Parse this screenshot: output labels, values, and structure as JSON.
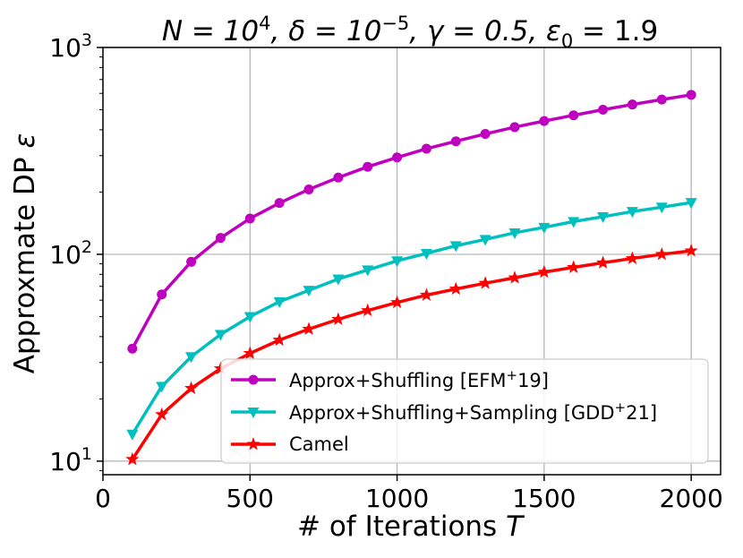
{
  "chart_data": {
    "type": "line",
    "title": {
      "eq1": "N = 10",
      "sup1": "4",
      "eq2": ", δ = 10",
      "sup2": "−5",
      "eq3": ", γ = 0.5, ε",
      "sub3": "0",
      "eq4": " = 1.9"
    },
    "xlabel": {
      "text": "# of Iterations ",
      "italic": "T"
    },
    "ylabel": {
      "text": "Approxmate DP ",
      "italic": "ε"
    },
    "xlim": [
      0,
      2100
    ],
    "ylim": [
      8.6,
      1000
    ],
    "yscale": "log",
    "grid": true,
    "x_ticks": [
      {
        "value": 0,
        "label": "0"
      },
      {
        "value": 500,
        "label": "500"
      },
      {
        "value": 1000,
        "label": "1000"
      },
      {
        "value": 1500,
        "label": "1500"
      },
      {
        "value": 2000,
        "label": "2000"
      }
    ],
    "y_ticks": [
      {
        "value": 10,
        "base": "10",
        "exp": "1"
      },
      {
        "value": 100,
        "base": "10",
        "exp": "2"
      },
      {
        "value": 1000,
        "base": "10",
        "exp": "3"
      }
    ],
    "x": [
      100,
      200,
      300,
      400,
      500,
      600,
      700,
      800,
      900,
      1000,
      1100,
      1200,
      1300,
      1400,
      1500,
      1600,
      1700,
      1800,
      1900,
      2000
    ],
    "series": [
      {
        "name": "Approx+Shuffling [EFM⁺19]",
        "legend": {
          "main": "Approx+Shuffling [EFM",
          "sup": "+",
          "tail": "19]"
        },
        "color": "#bf00bf",
        "marker": "circle",
        "values": [
          35,
          64,
          92,
          120,
          149,
          177,
          206,
          235,
          265,
          294,
          324,
          352,
          382,
          412,
          441,
          470,
          500,
          530,
          560,
          590
        ]
      },
      {
        "name": "Approx+Shuffling+Sampling [GDD⁺21]",
        "legend": {
          "main": "Approx+Shuffling+Sampling [GDD",
          "sup": "+",
          "tail": "21]"
        },
        "color": "#00bfbf",
        "marker": "triangle-down",
        "values": [
          13.5,
          23,
          32,
          41,
          50,
          59,
          67,
          76,
          84,
          93,
          101,
          110,
          118,
          127,
          135,
          144,
          152,
          161,
          169,
          178
        ]
      },
      {
        "name": "Camel",
        "legend": {
          "main": "Camel",
          "sup": "",
          "tail": ""
        },
        "color": "#ff0000",
        "marker": "star",
        "values": [
          10.2,
          16.8,
          22.5,
          28,
          33.2,
          38.5,
          43.5,
          48.5,
          53.5,
          58.5,
          63.5,
          68,
          72.5,
          77,
          82,
          86.5,
          91,
          95.5,
          100,
          104
        ]
      }
    ],
    "legend_position": "lower-right"
  }
}
